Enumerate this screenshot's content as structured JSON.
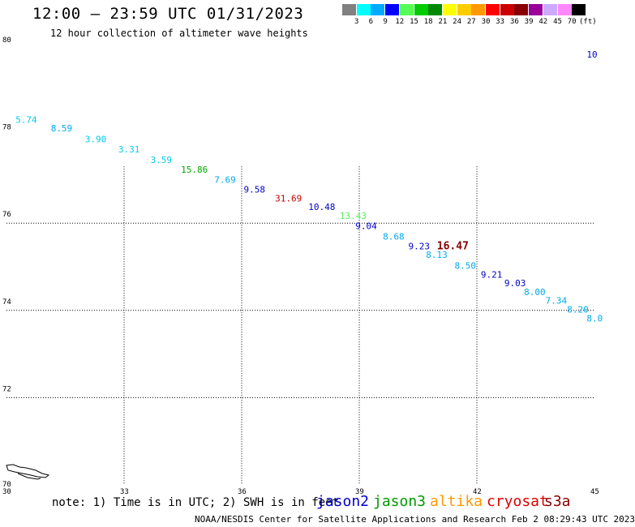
{
  "header": {
    "title": "12:00 — 23:59 UTC 01/31/2023",
    "subtitle": "12 hour collection of altimeter wave heights"
  },
  "color_scale": {
    "unit": "(ft)",
    "swatches": [
      "#808080",
      "#00ffff",
      "#00aaff",
      "#0000ff",
      "#55ff55",
      "#00cc00",
      "#008800",
      "#ffff00",
      "#ffcc00",
      "#ff9900",
      "#ff0000",
      "#cc0000",
      "#880000",
      "#990099",
      "#ccaaff",
      "#ff88ff",
      "#000000"
    ],
    "ticks": [
      "3",
      "6",
      "9",
      "12",
      "15",
      "18",
      "21",
      "24",
      "27",
      "30",
      "33",
      "36",
      "39",
      "42",
      "45",
      "70"
    ]
  },
  "map": {
    "lon_range": [
      30,
      45
    ],
    "lat_range": [
      70,
      80
    ],
    "lon_ticks": [
      "30",
      "33",
      "36",
      "39",
      "42",
      "45"
    ],
    "lat_ticks": [
      "80",
      "78",
      "76",
      "74",
      "72",
      "70"
    ],
    "observations": [
      {
        "text": "5.74",
        "lon": 30.48,
        "lat": 78.3,
        "color": "#00ccee"
      },
      {
        "text": "8.59",
        "lon": 31.38,
        "lat": 78.1,
        "color": "#00aaee"
      },
      {
        "text": "3.90",
        "lon": 32.25,
        "lat": 77.85,
        "color": "#00ccee"
      },
      {
        "text": "3.31",
        "lon": 33.1,
        "lat": 77.62,
        "color": "#00ccee"
      },
      {
        "text": "3.59",
        "lon": 33.92,
        "lat": 77.38,
        "color": "#00ccee"
      },
      {
        "text": "15.86",
        "lon": 34.7,
        "lat": 77.16,
        "color": "#00aa00"
      },
      {
        "text": "7.69",
        "lon": 35.55,
        "lat": 76.92,
        "color": "#00aaee"
      },
      {
        "text": "9.58",
        "lon": 36.3,
        "lat": 76.7,
        "color": "#0000cc"
      },
      {
        "text": "31.69",
        "lon": 37.1,
        "lat": 76.5,
        "color": "#cc0000"
      },
      {
        "text": "10.48",
        "lon": 37.95,
        "lat": 76.3,
        "color": "#0000cc"
      },
      {
        "text": "13.43",
        "lon": 38.75,
        "lat": 76.1,
        "color": "#55ee55"
      },
      {
        "text": "9.04",
        "lon": 39.15,
        "lat": 75.86,
        "color": "#0000cc"
      },
      {
        "text": "8.68",
        "lon": 39.85,
        "lat": 75.62,
        "color": "#00aaee"
      },
      {
        "text": "9.23",
        "lon": 40.5,
        "lat": 75.4,
        "color": "#0000cc"
      },
      {
        "text": "16.47",
        "lon": 41.23,
        "lat": 75.4,
        "color": "#880000",
        "big": true
      },
      {
        "text": "8.13",
        "lon": 40.95,
        "lat": 75.2,
        "color": "#00aaee"
      },
      {
        "text": "8.50",
        "lon": 41.68,
        "lat": 74.95,
        "color": "#00aaee"
      },
      {
        "text": "9.21",
        "lon": 42.35,
        "lat": 74.75,
        "color": "#0000cc"
      },
      {
        "text": "9.03",
        "lon": 42.95,
        "lat": 74.55,
        "color": "#0000cc"
      },
      {
        "text": "8.00",
        "lon": 43.45,
        "lat": 74.35,
        "color": "#00aaee"
      },
      {
        "text": "7.34",
        "lon": 44.0,
        "lat": 74.15,
        "color": "#00aaee"
      },
      {
        "text": "8.20",
        "lon": 44.55,
        "lat": 73.95,
        "color": "#00aaee"
      },
      {
        "text": "8.0",
        "lon": 45.05,
        "lat": 73.75,
        "color": "#00aaee"
      },
      {
        "text": "10",
        "lon": 45.05,
        "lat": 79.8,
        "color": "#0000cc"
      }
    ]
  },
  "note": "note: 1) Time is in UTC; 2) SWH is in feet",
  "legend": [
    {
      "label": "jason2",
      "color": "#0000cc"
    },
    {
      "label": "jason3",
      "color": "#009900"
    },
    {
      "label": "altika",
      "color": "#ff9900"
    },
    {
      "label": "cryosat",
      "color": "#dd0000"
    },
    {
      "label": "s3a",
      "color": "#880000"
    }
  ],
  "credit": "NOAA/NESDIS Center for Satellite Applications and Research   Feb  2 08:29:43 UTC 2023"
}
